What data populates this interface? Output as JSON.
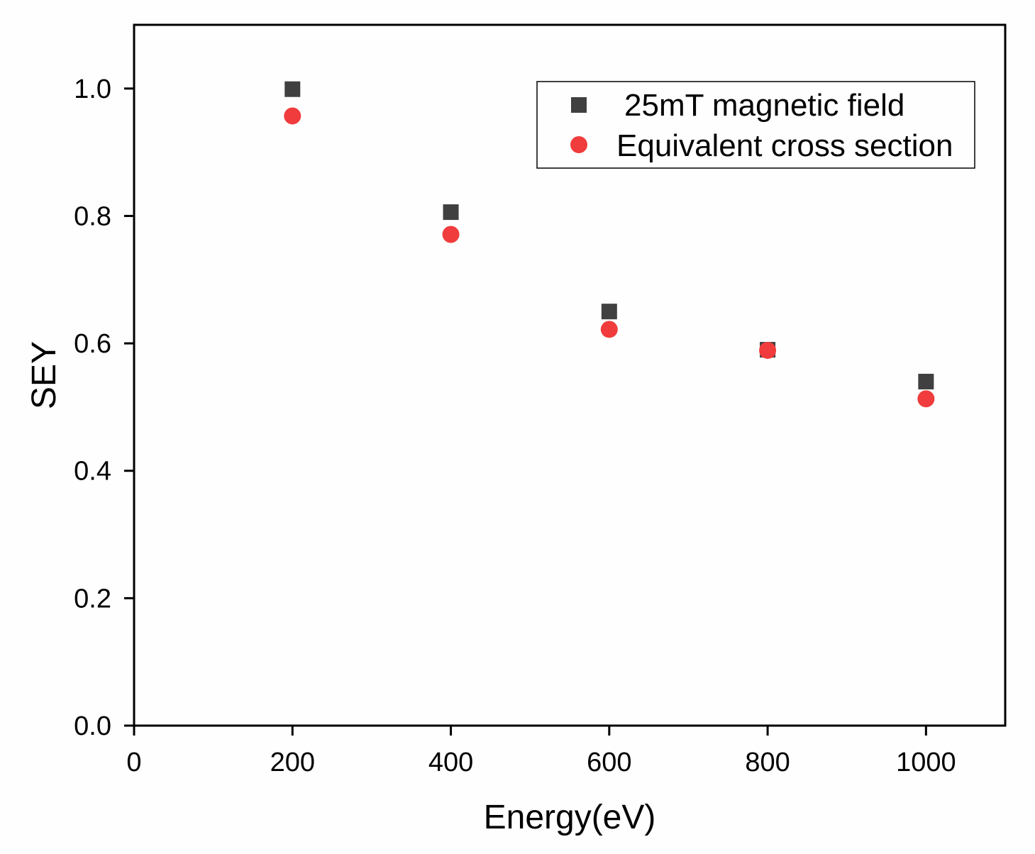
{
  "chart_data": {
    "type": "scatter",
    "xlabel": "Energy(eV)",
    "ylabel": "SEY",
    "xlim": [
      0,
      1100
    ],
    "ylim": [
      0,
      1.1
    ],
    "xticks": [
      0,
      200,
      400,
      600,
      800,
      1000
    ],
    "xtick_labels": [
      "0",
      "200",
      "400",
      "600",
      "800",
      "1000"
    ],
    "yticks": [
      0.0,
      0.2,
      0.4,
      0.6,
      0.8,
      1.0
    ],
    "ytick_labels": [
      "0.0",
      "0.2",
      "0.4",
      "0.6",
      "0.8",
      "1.0"
    ],
    "grid": false,
    "legend_position": "top-right",
    "series": [
      {
        "name": "25mT magnetic field",
        "marker": "square",
        "color": "#404040",
        "x": [
          200,
          400,
          600,
          800,
          1000
        ],
        "y": [
          0.999,
          0.806,
          0.65,
          0.59,
          0.54
        ]
      },
      {
        "name": "Equivalent cross section",
        "marker": "circle",
        "color": "#f03c3c",
        "x": [
          200,
          400,
          600,
          800,
          1000
        ],
        "y": [
          0.957,
          0.771,
          0.622,
          0.589,
          0.513
        ]
      }
    ]
  }
}
